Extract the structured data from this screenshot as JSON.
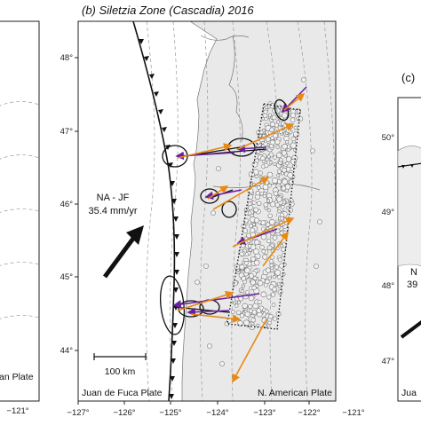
{
  "panel_b": {
    "title": "(b) Siletzia Zone (Cascadia) 2016",
    "lat_ticks": [
      "48°",
      "47°",
      "46°",
      "45°",
      "44°"
    ],
    "lon_ticks": [
      "−127°",
      "−126°",
      "−125°",
      "−124°",
      "−123°",
      "−122°",
      "−121°"
    ],
    "plate_motion_label": "NA - JF",
    "plate_motion_rate": "35.4 mm/yr",
    "scale_bar_label": "100 km",
    "left_plate_label": "Juan de Fuca Plate",
    "right_plate_label": "N. American Plate"
  },
  "panel_a_partial": {
    "plate_label": "an Plate",
    "lon_tick": "−121°"
  },
  "panel_c_partial": {
    "title": "(c)",
    "lat_ticks": [
      "50°",
      "49°",
      "48°",
      "47°"
    ],
    "label_fragment_1": "N",
    "label_fragment_2": "39",
    "plate_label": "Jua"
  },
  "legend_colors": {
    "purple_vectors": "#6a1fa0",
    "orange_vectors": "#e88a12",
    "ellipses_black": "#111111"
  }
}
